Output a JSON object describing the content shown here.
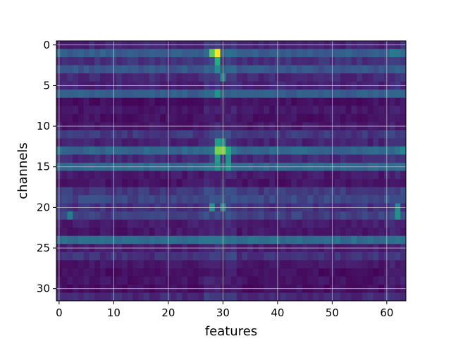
{
  "chart_data": {
    "type": "heatmap",
    "title": "",
    "xlabel": "features",
    "ylabel": "channels",
    "x_ticks": [
      0,
      10,
      20,
      30,
      40,
      50,
      60
    ],
    "y_ticks": [
      0,
      5,
      10,
      15,
      20,
      25,
      30
    ],
    "xlim": [
      -0.5,
      63.5
    ],
    "ylim": [
      31.5,
      -0.5
    ],
    "grid": true,
    "colormap": "viridis",
    "value_range": [
      0,
      1
    ],
    "n_rows": 32,
    "n_cols": 64,
    "row_base_values": [
      0.12,
      0.3,
      0.16,
      0.27,
      0.14,
      0.12,
      0.3,
      0.05,
      0.08,
      0.06,
      0.08,
      0.18,
      0.12,
      0.33,
      0.14,
      0.34,
      0.09,
      0.07,
      0.18,
      0.22,
      0.16,
      0.2,
      0.1,
      0.08,
      0.36,
      0.1,
      0.16,
      0.08,
      0.05,
      0.07,
      0.05,
      0.14
    ],
    "hot_cells": [
      {
        "row": 1,
        "col": 29,
        "value": 1.0
      },
      {
        "row": 1,
        "col": 28,
        "value": 0.75
      },
      {
        "row": 2,
        "col": 29,
        "value": 0.62
      },
      {
        "row": 3,
        "col": 29,
        "value": 0.48
      },
      {
        "row": 4,
        "col": 30,
        "value": 0.45
      },
      {
        "row": 6,
        "col": 29,
        "value": 0.52
      },
      {
        "row": 12,
        "col": 29,
        "value": 0.55
      },
      {
        "row": 12,
        "col": 30,
        "value": 0.52
      },
      {
        "row": 13,
        "col": 29,
        "value": 0.8
      },
      {
        "row": 13,
        "col": 30,
        "value": 0.82
      },
      {
        "row": 13,
        "col": 31,
        "value": 0.6
      },
      {
        "row": 14,
        "col": 29,
        "value": 0.55
      },
      {
        "row": 14,
        "col": 31,
        "value": 0.5
      },
      {
        "row": 15,
        "col": 29,
        "value": 0.52
      },
      {
        "row": 15,
        "col": 31,
        "value": 0.55
      },
      {
        "row": 20,
        "col": 28,
        "value": 0.52
      },
      {
        "row": 20,
        "col": 30,
        "value": 0.5
      },
      {
        "row": 20,
        "col": 62,
        "value": 0.48
      },
      {
        "row": 21,
        "col": 62,
        "value": 0.5
      },
      {
        "row": 1,
        "col": 61,
        "value": 0.42
      },
      {
        "row": 1,
        "col": 62,
        "value": 0.4
      },
      {
        "row": 13,
        "col": 63,
        "value": 0.46
      },
      {
        "row": 21,
        "col": 2,
        "value": 0.42
      }
    ]
  }
}
